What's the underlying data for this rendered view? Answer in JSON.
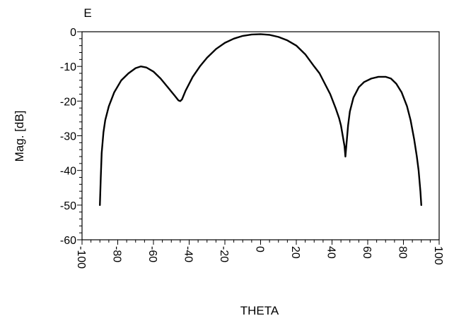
{
  "chart_data": {
    "type": "line",
    "title": "E",
    "xlabel": "THETA",
    "ylabel": "Mag. [dB]",
    "xlim": [
      -100,
      100
    ],
    "ylim": [
      -60,
      0
    ],
    "x_ticks": [
      -100,
      -80,
      -60,
      -40,
      -20,
      0,
      20,
      40,
      60,
      80,
      100
    ],
    "y_ticks": [
      0,
      -10,
      -20,
      -30,
      -40,
      -50,
      -60
    ],
    "x_tick_labels": [
      "-100",
      "-80",
      "-60",
      "-40",
      "-20",
      "0",
      "20",
      "40",
      "60",
      "80",
      "100"
    ],
    "y_tick_labels": [
      "0",
      "-10",
      "-20",
      "-30",
      "-40",
      "-50",
      "-60"
    ],
    "grid": false,
    "legend": "none",
    "series": [
      {
        "color": "#000000",
        "x": [
          -90,
          -89.5,
          -89,
          -88,
          -87,
          -85,
          -82,
          -78,
          -74,
          -70,
          -67,
          -64,
          -60,
          -56,
          -52,
          -48,
          -46,
          -45,
          -44,
          -42,
          -38,
          -34,
          -30,
          -25,
          -20,
          -15,
          -10,
          -5,
          0,
          5,
          10,
          15,
          20,
          25,
          30,
          33,
          36,
          39,
          42,
          44,
          45,
          46,
          47,
          47.5,
          48,
          49,
          50,
          52,
          55,
          58,
          62,
          66,
          68,
          70,
          73,
          76,
          79,
          82,
          84,
          86,
          87.5,
          88.5,
          89,
          89.5,
          90
        ],
        "y": [
          -50,
          -42,
          -35,
          -29,
          -25.5,
          -21.5,
          -17.5,
          -14,
          -12,
          -10.5,
          -10,
          -10.3,
          -11.5,
          -13.5,
          -16,
          -18.5,
          -19.8,
          -20,
          -19.5,
          -17,
          -13,
          -10,
          -7.5,
          -5,
          -3.2,
          -2,
          -1.2,
          -0.8,
          -0.7,
          -0.9,
          -1.5,
          -2.5,
          -4,
          -6.5,
          -10,
          -12,
          -15,
          -18,
          -22,
          -25,
          -27,
          -30,
          -33,
          -36,
          -33,
          -27,
          -23,
          -19,
          -16,
          -14.5,
          -13.5,
          -13,
          -13,
          -13,
          -13.5,
          -15,
          -17.5,
          -21.5,
          -25.5,
          -31,
          -36,
          -40,
          -43,
          -46,
          -50
        ]
      }
    ]
  }
}
